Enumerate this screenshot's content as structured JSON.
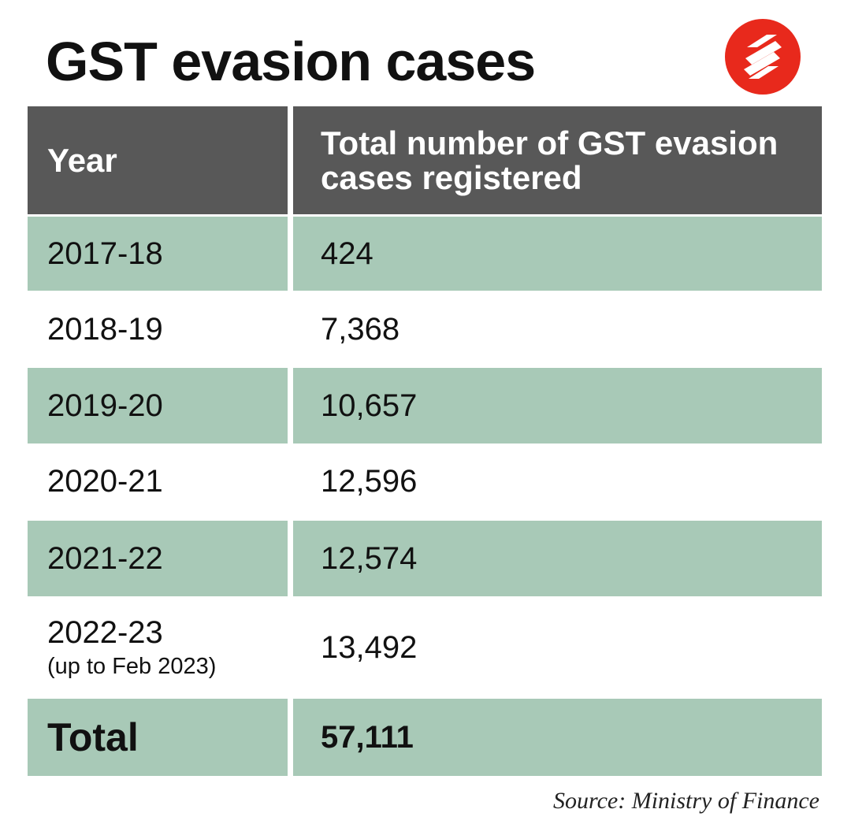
{
  "title": "GST evasion cases",
  "table": {
    "header": [
      "Year",
      "Total number of GST evasion cases registered"
    ],
    "rows": [
      {
        "year": "2017-18",
        "cases": "424"
      },
      {
        "year": "2018-19",
        "cases": "7,368"
      },
      {
        "year": "2019-20",
        "cases": "10,657"
      },
      {
        "year": "2020-21",
        "cases": "12,596"
      },
      {
        "year": "2021-22",
        "cases": "12,574"
      },
      {
        "year": "2022-23",
        "note": "(up to Feb 2023)",
        "cases": "13,492"
      }
    ],
    "total": {
      "label": "Total",
      "cases": "57,111"
    }
  },
  "source": "Source: Ministry of Finance"
}
